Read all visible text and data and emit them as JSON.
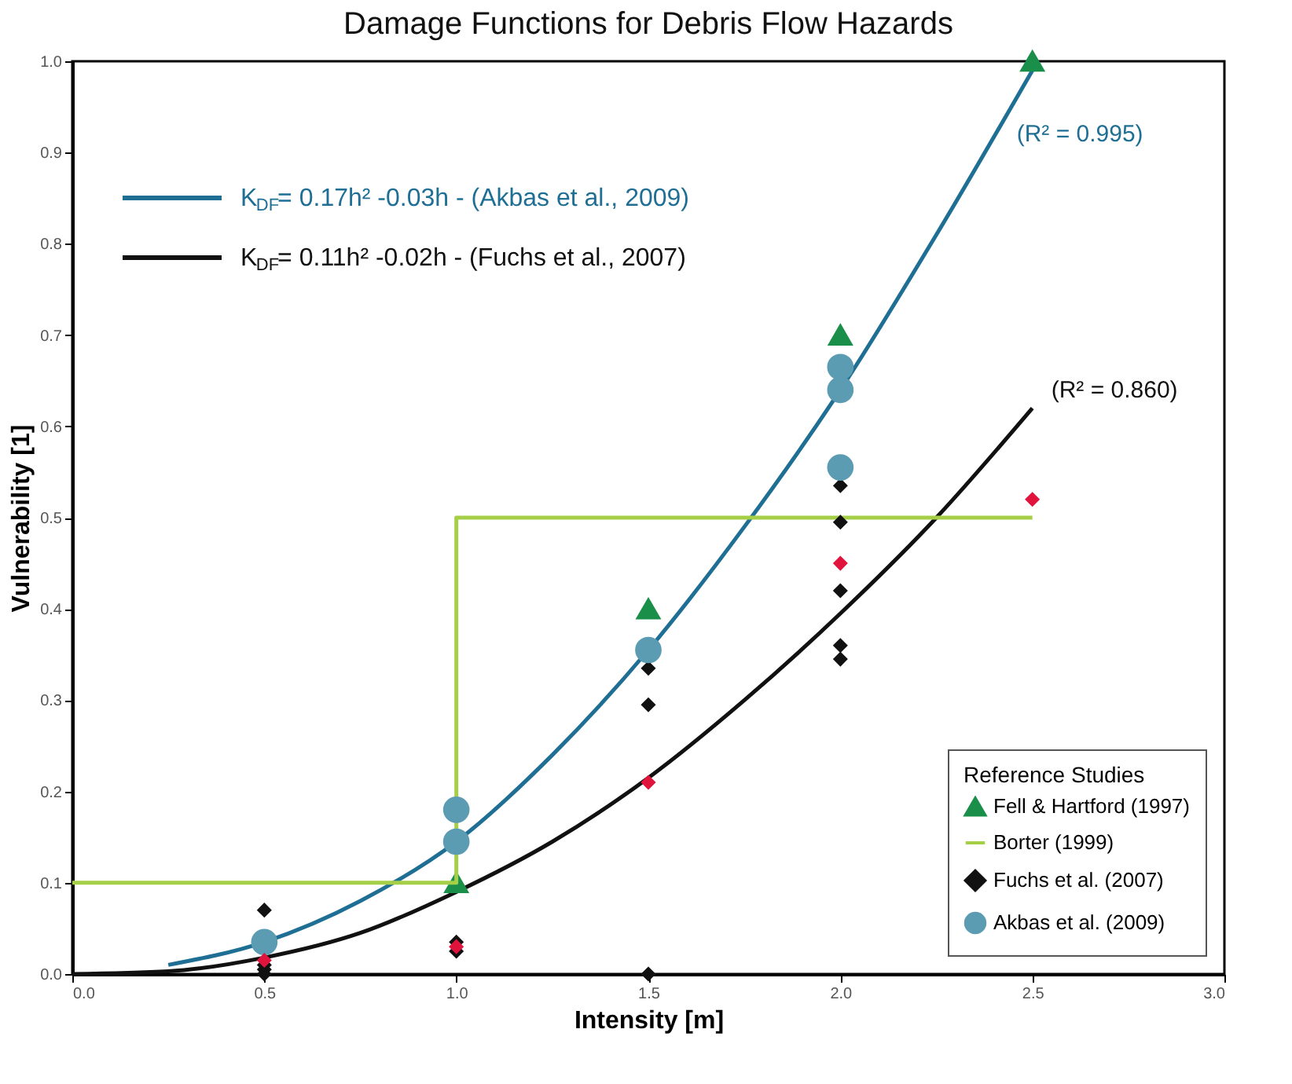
{
  "chart_data": {
    "type": "scatter",
    "title": "Damage Functions for Debris Flow Hazards",
    "xlabel": "Intensity [m]",
    "ylabel": "Vulnerability [1]",
    "legend_title": "Reference Studies",
    "legend": "bottom right",
    "grid": false,
    "xlim": [
      0,
      3.0
    ],
    "xticks": [
      {
        "value": 0,
        "label": "0.0"
      },
      0.5,
      {
        "value": 1,
        "label": "1.0"
      },
      1.5,
      {
        "value": 2,
        "label": "2.0"
      },
      2.5,
      {
        "value": 3,
        "label": "3.0"
      }
    ],
    "ylim": [
      0,
      1.0
    ],
    "yticks": [
      {
        "value": 0,
        "label": "0.0"
      },
      0.1,
      0.2,
      0.3,
      0.4,
      0.5,
      0.6,
      0.7,
      0.8,
      0.9,
      {
        "value": 1,
        "label": "1.0"
      }
    ],
    "series": [
      {
        "name": "K$_{DF}$= 0.17h² -0.03h - (Akbas et al., 2009)",
        "type": "line",
        "color": "#1f6f95",
        "x": [
          0.25,
          0.5,
          0.75,
          1.0,
          1.25,
          1.5,
          1.75,
          2.0,
          2.25,
          2.5
        ],
        "values": [
          0.01,
          0.035,
          0.08,
          0.145,
          0.24,
          0.355,
          0.49,
          0.64,
          0.81,
          0.99
        ]
      },
      {
        "name": "K$_{DF}$= 0.11h² -0.02h - (Fuchs et al., 2007)",
        "type": "line",
        "color": "#111111",
        "x": [
          0,
          0.25,
          0.5,
          0.75,
          1.0,
          1.25,
          1.5,
          1.75,
          2.0,
          2.25,
          2.5
        ],
        "values": [
          0,
          0.003,
          0.018,
          0.045,
          0.09,
          0.145,
          0.215,
          0.3,
          0.395,
          0.5,
          0.62
        ]
      },
      {
        "name": "Fell & Hartford (1997)",
        "marker": "triangle",
        "color": "#1a8f4a",
        "x": [
          1.0,
          1.5,
          2.0,
          2.5
        ],
        "values": [
          0.1,
          0.4,
          0.7,
          1.0
        ]
      },
      {
        "name": "Borter (1999)",
        "type": "step",
        "color": "#a6cf48",
        "x": [
          0,
          1.0,
          2.5
        ],
        "values": [
          0.1,
          0.5,
          0.5
        ]
      },
      {
        "name": "Fuchs et al. (2007)",
        "marker": "diamond",
        "color": "#111111",
        "x": [
          0.5,
          0.5,
          0.5,
          0.5,
          1.0,
          1.0,
          1.5,
          1.5,
          1.5,
          2.0,
          2.0,
          2.0,
          2.0,
          2.0
        ],
        "values": [
          0.07,
          0.01,
          0.005,
          0.0,
          0.035,
          0.025,
          0.335,
          0.295,
          0.0,
          0.535,
          0.495,
          0.42,
          0.36,
          0.345
        ]
      },
      {
        "name": "Akbas et al. (2009)",
        "marker": "circle",
        "color": "#5b9cb3",
        "x": [
          0.5,
          1.0,
          1.0,
          1.5,
          2.0,
          2.0,
          2.0
        ],
        "values": [
          0.035,
          0.18,
          0.145,
          0.355,
          0.665,
          0.64,
          0.555
        ]
      },
      {
        "marker": "diamond",
        "color": "#e0143c",
        "x": [
          0.5,
          1.0,
          1.5,
          2.0,
          2.5
        ],
        "values": [
          0.015,
          0.03,
          0.21,
          0.45,
          0.52
        ]
      }
    ],
    "annotations": [
      "(R² = 0.995)",
      "(R² = 0.860)"
    ]
  }
}
